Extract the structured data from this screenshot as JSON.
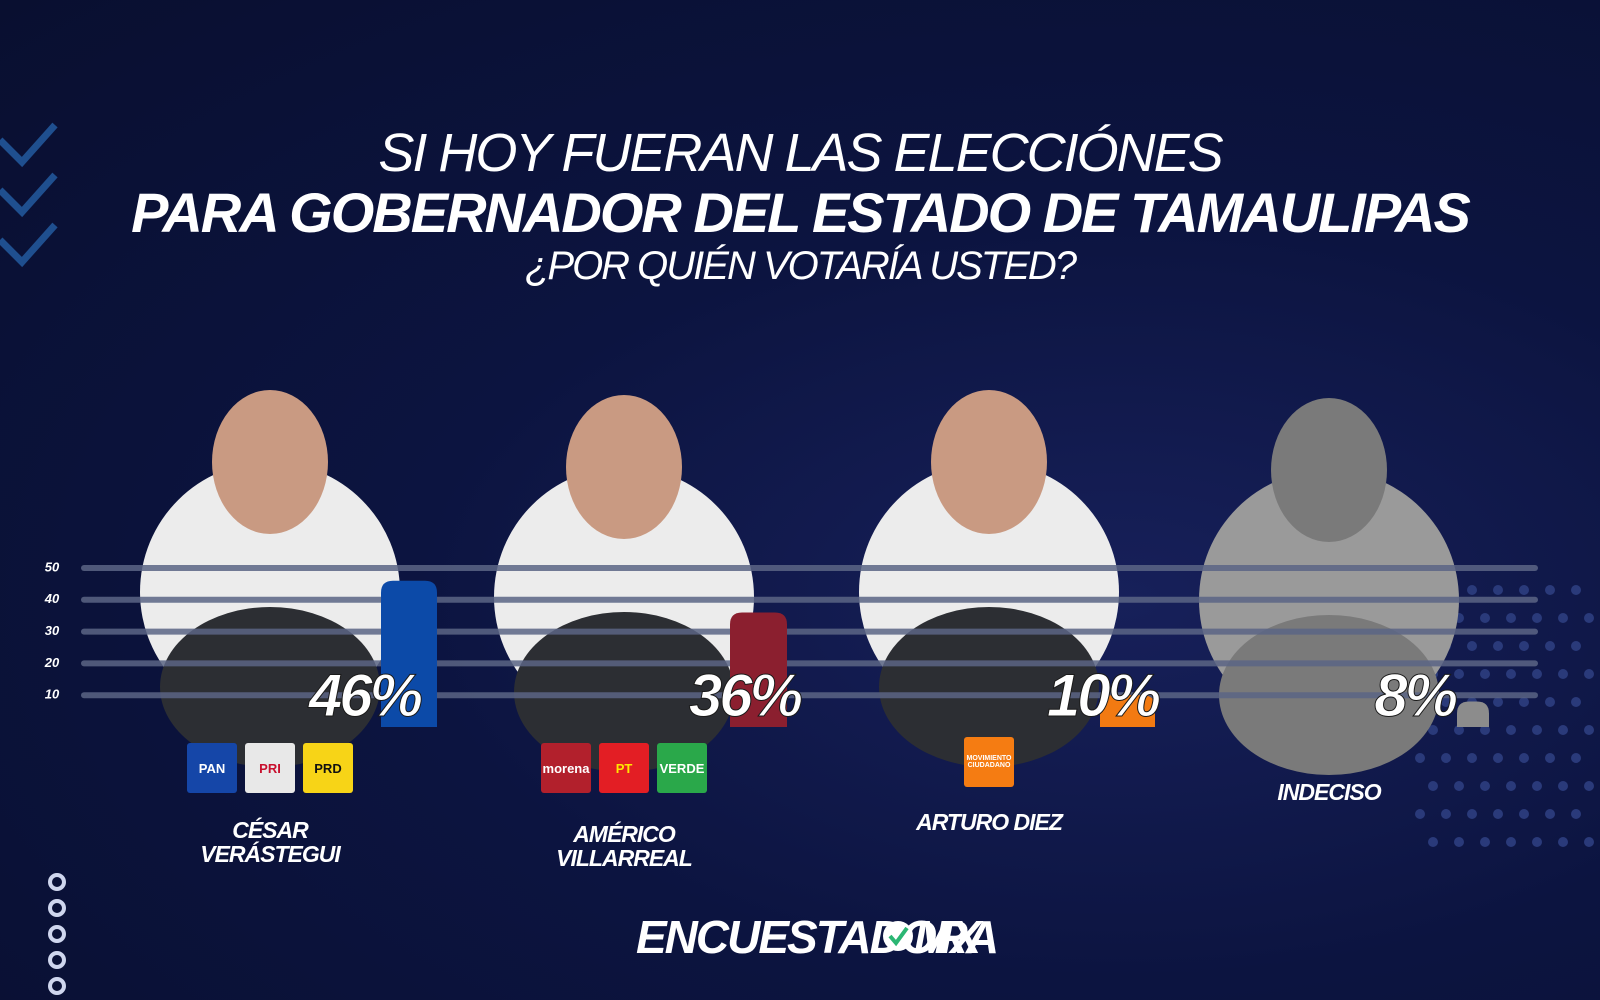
{
  "header": {
    "title_1": "SI HOY FUERAN LAS ELECCIÓNES",
    "title_2": "PARA GOBERNADOR DEL ESTADO DE  TAMAULIPAS",
    "subtitle": "¿POR QUIÉN VOTARÍA USTED?"
  },
  "chart_data": {
    "type": "bar",
    "categories": [
      "CÉSAR VERÁSTEGUI",
      "AMÉRICO VILLARREAL",
      "ARTURO DIEZ",
      "INDECISO"
    ],
    "values": [
      46,
      36,
      10,
      8
    ],
    "value_labels": [
      "46%",
      "36%",
      "10%",
      "8%"
    ],
    "colors": [
      "#0c4aa8",
      "#8b1f2f",
      "#f27a12",
      "#8c8c8c"
    ],
    "ylim": [
      0,
      50
    ],
    "yticks": [
      10,
      20,
      30,
      40,
      50
    ],
    "grid": true
  },
  "parties": [
    [
      "PAN",
      "PRI",
      "PRD"
    ],
    [
      "morena",
      "PT",
      "VERDE"
    ],
    [
      "MOVIMIENTO CIUDADANO"
    ],
    []
  ],
  "brand": {
    "left": "ENCUESTADORA",
    "right": "MX"
  }
}
